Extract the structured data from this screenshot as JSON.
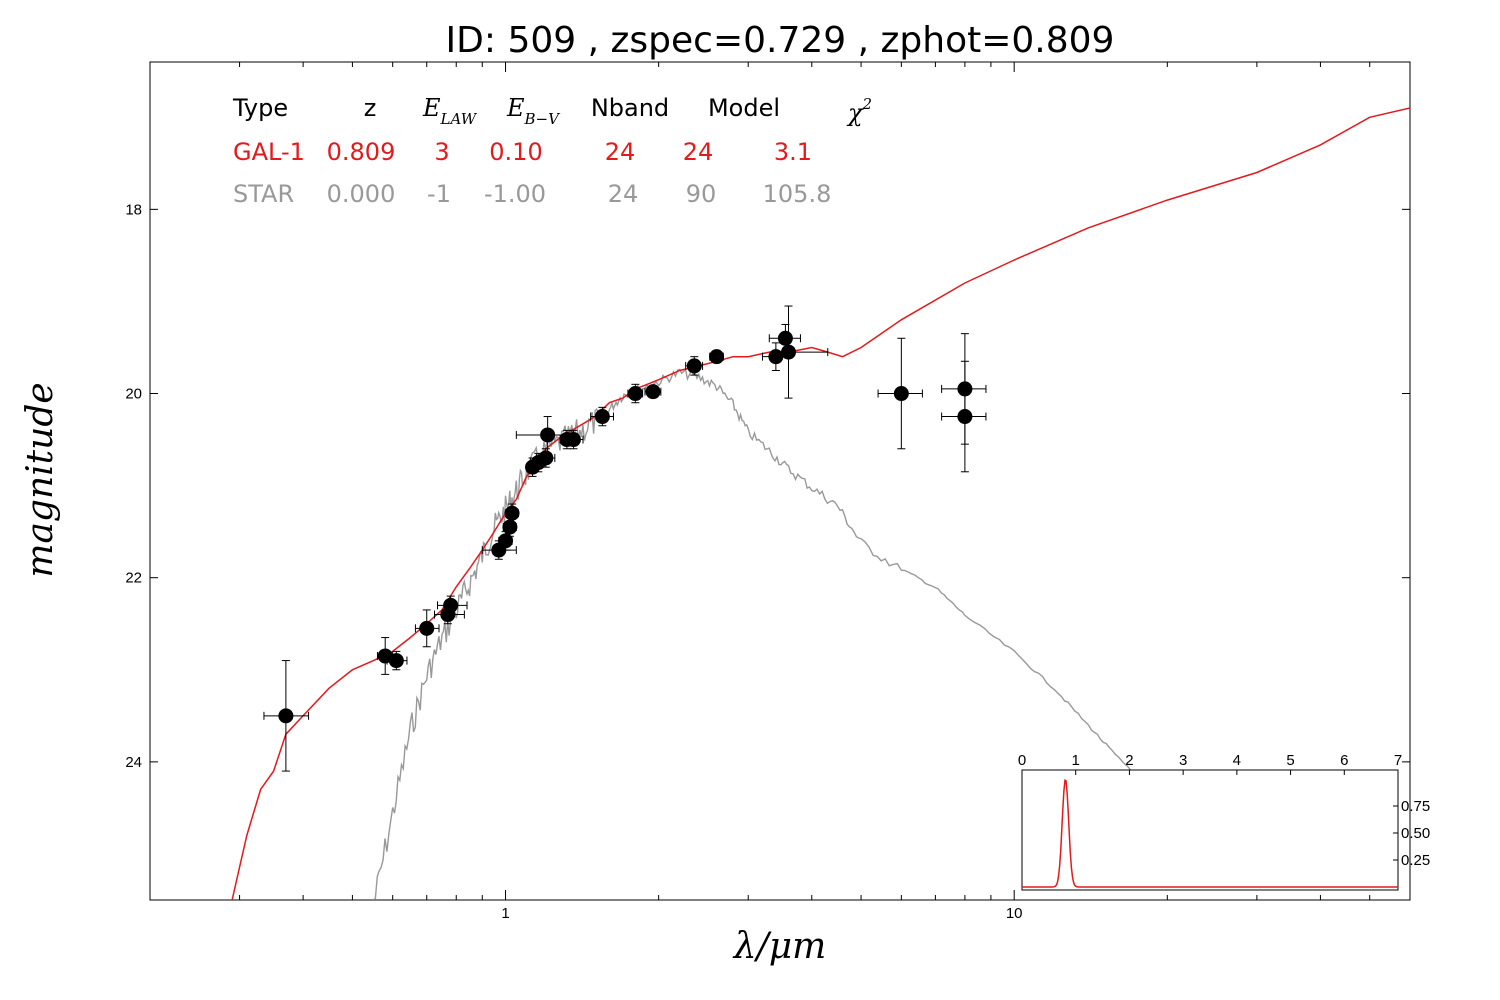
{
  "chart_data": {
    "type": "scatter",
    "title": "ID:  509   , zspec=0.729 , zphot=0.809",
    "xlabel": "λ/μm",
    "ylabel": "magnitude",
    "x_scale": "log",
    "xlim": [
      0.2,
      60
    ],
    "ylim": [
      25.5,
      16.4
    ],
    "x_ticks": [
      {
        "value": 1,
        "label": "1"
      },
      {
        "value": 10,
        "label": "10"
      }
    ],
    "y_ticks": [
      {
        "value": 18,
        "label": "18"
      },
      {
        "value": 20,
        "label": "20"
      },
      {
        "value": 22,
        "label": "22"
      },
      {
        "value": 24,
        "label": "24"
      }
    ],
    "grid": false,
    "legend_table": {
      "headers": [
        "Type",
        "z",
        "E_LAW",
        "E_B-V",
        "Nband",
        "Model",
        "χ2"
      ],
      "rows": [
        {
          "values": [
            "GAL-1",
            "0.809",
            "3",
            "0.10",
            "24",
            "24",
            "3.1"
          ],
          "color": "#e31a1c"
        },
        {
          "values": [
            "STAR",
            "0.000",
            "-1",
            "-1.00",
            "24",
            "90",
            "105.8"
          ],
          "color": "#999999"
        }
      ]
    },
    "points": [
      {
        "x": 0.37,
        "y": 23.5,
        "xlo": 0.335,
        "xhi": 0.41,
        "yerr": 0.6
      },
      {
        "x": 0.58,
        "y": 22.85,
        "xlo": 0.56,
        "xhi": 0.6,
        "yerr": 0.2
      },
      {
        "x": 0.61,
        "y": 22.9,
        "xlo": 0.585,
        "xhi": 0.64,
        "yerr": 0.1
      },
      {
        "x": 0.7,
        "y": 22.55,
        "xlo": 0.665,
        "xhi": 0.74,
        "yerr": 0.2
      },
      {
        "x": 0.77,
        "y": 22.4,
        "xlo": 0.725,
        "xhi": 0.83,
        "yerr": 0.1
      },
      {
        "x": 0.78,
        "y": 22.3,
        "xlo": 0.735,
        "xhi": 0.84,
        "yerr": 0.1
      },
      {
        "x": 0.97,
        "y": 21.7,
        "xlo": 0.9,
        "xhi": 1.05,
        "yerr": 0.1
      },
      {
        "x": 1.0,
        "y": 21.6,
        "xlo": 0.97,
        "xhi": 1.03,
        "yerr": 0.1
      },
      {
        "x": 1.02,
        "y": 21.45,
        "xlo": 0.99,
        "xhi": 1.05,
        "yerr": 0.1
      },
      {
        "x": 1.03,
        "y": 21.3,
        "xlo": 1.0,
        "xhi": 1.06,
        "yerr": 0.1
      },
      {
        "x": 1.13,
        "y": 20.8,
        "xlo": 1.1,
        "xhi": 1.16,
        "yerr": 0.1
      },
      {
        "x": 1.16,
        "y": 20.75,
        "xlo": 1.12,
        "xhi": 1.2,
        "yerr": 0.1
      },
      {
        "x": 1.2,
        "y": 20.7,
        "xlo": 1.15,
        "xhi": 1.25,
        "yerr": 0.1
      },
      {
        "x": 1.21,
        "y": 20.45,
        "xlo": 1.05,
        "xhi": 1.35,
        "yerr": 0.2
      },
      {
        "x": 1.32,
        "y": 20.5,
        "xlo": 1.28,
        "xhi": 1.36,
        "yerr": 0.1
      },
      {
        "x": 1.36,
        "y": 20.5,
        "xlo": 1.3,
        "xhi": 1.42,
        "yerr": 0.1
      },
      {
        "x": 1.55,
        "y": 20.25,
        "xlo": 1.47,
        "xhi": 1.63,
        "yerr": 0.1
      },
      {
        "x": 1.8,
        "y": 20.0,
        "xlo": 1.74,
        "xhi": 1.86,
        "yerr": 0.1
      },
      {
        "x": 1.95,
        "y": 19.98,
        "xlo": 1.88,
        "xhi": 2.02,
        "yerr": 0.05
      },
      {
        "x": 2.35,
        "y": 19.7,
        "xlo": 2.26,
        "xhi": 2.44,
        "yerr": 0.1
      },
      {
        "x": 2.6,
        "y": 19.6,
        "xlo": 2.52,
        "xhi": 2.68,
        "yerr": 0.05
      },
      {
        "x": 3.4,
        "y": 19.6,
        "xlo": 3.2,
        "xhi": 3.6,
        "yerr": 0.15
      },
      {
        "x": 3.55,
        "y": 19.4,
        "xlo": 3.3,
        "xhi": 3.8,
        "yerr": 0.15
      },
      {
        "x": 3.6,
        "y": 19.55,
        "xlo": 3.4,
        "xhi": 4.3,
        "yerr": 0.5
      },
      {
        "x": 6.0,
        "y": 20.0,
        "xlo": 5.4,
        "xhi": 6.6,
        "yerr": 0.6
      },
      {
        "x": 8.0,
        "y": 19.95,
        "xlo": 7.2,
        "xhi": 8.8,
        "yerr": 0.6
      },
      {
        "x": 8.0,
        "y": 20.25,
        "xlo": 7.2,
        "xhi": 8.8,
        "yerr": 0.6
      }
    ],
    "galaxy_model": {
      "color": "#e31a1c",
      "x": [
        0.29,
        0.31,
        0.33,
        0.35,
        0.37,
        0.4,
        0.45,
        0.5,
        0.55,
        0.6,
        0.65,
        0.7,
        0.75,
        0.8,
        0.85,
        0.9,
        0.95,
        1.0,
        1.05,
        1.1,
        1.15,
        1.2,
        1.3,
        1.4,
        1.5,
        1.6,
        1.7,
        1.8,
        1.9,
        2.0,
        2.2,
        2.4,
        2.6,
        2.8,
        3.0,
        3.3,
        3.6,
        4.0,
        4.3,
        4.6,
        5.0,
        6.0,
        8.0,
        10.0,
        14.0,
        20.0,
        30.0,
        40.0,
        50.0,
        60.0
      ],
      "y": [
        25.5,
        24.8,
        24.3,
        24.1,
        23.7,
        23.5,
        23.2,
        23.0,
        22.9,
        22.8,
        22.65,
        22.5,
        22.35,
        22.1,
        21.9,
        21.7,
        21.5,
        21.3,
        21.15,
        20.9,
        20.75,
        20.6,
        20.45,
        20.35,
        20.25,
        20.1,
        20.05,
        19.95,
        19.9,
        19.85,
        19.75,
        19.7,
        19.65,
        19.6,
        19.6,
        19.55,
        19.55,
        19.5,
        19.55,
        19.6,
        19.5,
        19.2,
        18.8,
        18.55,
        18.2,
        17.9,
        17.6,
        17.3,
        17.0,
        16.9
      ]
    },
    "star_model": {
      "color": "#999999",
      "x": [
        0.55,
        0.6,
        0.65,
        0.7,
        0.75,
        0.8,
        0.85,
        0.9,
        0.95,
        1.0,
        1.05,
        1.1,
        1.2,
        1.3,
        1.4,
        1.5,
        1.6,
        1.7,
        1.8,
        2.0,
        2.2,
        2.4,
        2.6,
        2.8,
        3.0,
        3.3,
        3.6,
        4.0,
        4.5,
        5.0,
        6.0,
        7.0,
        8.0,
        10.0,
        12.0,
        14.0,
        16.0,
        18.0
      ],
      "y": [
        25.5,
        24.5,
        23.6,
        23.0,
        22.6,
        22.3,
        22.0,
        21.7,
        21.4,
        21.2,
        21.0,
        20.8,
        20.55,
        20.45,
        20.35,
        20.25,
        20.15,
        20.0,
        19.95,
        19.85,
        19.75,
        19.8,
        19.9,
        20.1,
        20.4,
        20.6,
        20.8,
        21.0,
        21.2,
        21.6,
        21.9,
        22.1,
        22.4,
        22.8,
        23.2,
        23.6,
        23.95,
        24.2
      ]
    },
    "inset": {
      "xlim": [
        0,
        7
      ],
      "x_ticks": [
        "0",
        "1",
        "2",
        "3",
        "4",
        "5",
        "6",
        "7"
      ],
      "y_ticks": [
        "0.25",
        "0.50",
        "0.75"
      ],
      "pdf_color": "#e31a1c",
      "pdf_peak": 0.809,
      "pdf_height": 1.0
    }
  }
}
